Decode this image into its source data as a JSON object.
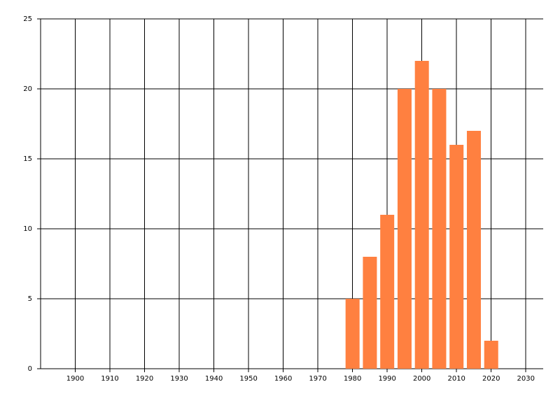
{
  "chart_data": {
    "type": "bar",
    "x": [
      1980,
      1985,
      1990,
      1995,
      2000,
      2005,
      2010,
      2015,
      2020
    ],
    "values": [
      5,
      8,
      11,
      20,
      22,
      20,
      16,
      17,
      2
    ],
    "color": "#ff8040",
    "xlim": [
      1890,
      2035
    ],
    "xticks": [
      1900,
      1910,
      1920,
      1930,
      1940,
      1950,
      1960,
      1970,
      1980,
      1990,
      2000,
      2010,
      2020,
      2030
    ],
    "ylim": [
      0,
      25
    ],
    "yticks": [
      0,
      5,
      10,
      15,
      20,
      25
    ],
    "grid": true
  }
}
